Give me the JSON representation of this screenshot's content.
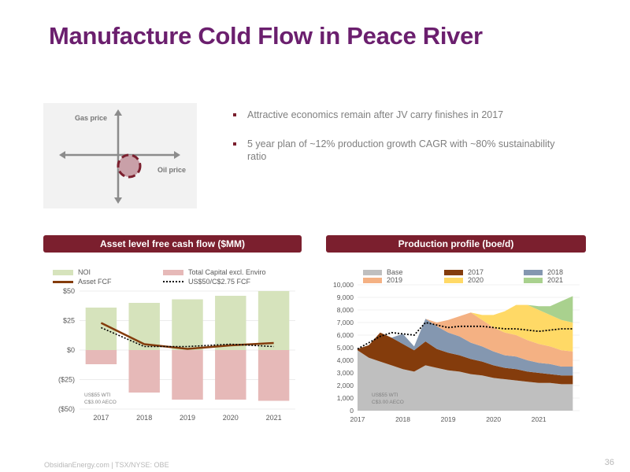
{
  "title": "Manufacture Cold Flow in Peace River",
  "quadrant": {
    "y_label": "Gas price",
    "x_label": "Oil price"
  },
  "bullets": [
    "Attractive economics remain after JV carry finishes in 2017",
    "5 year plan of ~12% production growth CAGR with ~80% sustainability ratio"
  ],
  "left_panel": {
    "header": "Asset level free cash flow ($MM)",
    "note_line1": "US$55 WTI",
    "note_line2": "C$3.00 AECO"
  },
  "right_panel": {
    "header": "Production profile (boe/d)",
    "note_line1": "US$55 WTI",
    "note_line2": "C$3.00 AECO"
  },
  "footer": "ObsidianEnergy.com | TSX/NYSE: OBE",
  "page_number": "36",
  "colors": {
    "title": "#6b1f6e",
    "header_bg": "#7b1f2e",
    "noi": "#d6e3bc",
    "capital": "#e6b9b8",
    "asset_fcf": "#843c0c",
    "base": "#bfbfbf",
    "y2017": "#843c0c",
    "y2018": "#8497b0",
    "y2019": "#f4b183",
    "y2020": "#ffd966",
    "y2021": "#a9d18e"
  },
  "chart_data": [
    {
      "type": "bar",
      "title": "Asset level free cash flow ($MM)",
      "categories": [
        "2017",
        "2018",
        "2019",
        "2020",
        "2021"
      ],
      "ylim": [
        -50,
        50
      ],
      "yticks": [
        "$50",
        "$25",
        "$0",
        "($25)",
        "($50)"
      ],
      "ytick_values": [
        50,
        25,
        0,
        -25,
        -50
      ],
      "bar_series": [
        {
          "name": "NOI",
          "values": [
            36,
            40,
            43,
            46,
            50
          ]
        },
        {
          "name": "Total Capital excl. Enviro",
          "values": [
            -12,
            -36,
            -42,
            -42,
            -43
          ]
        }
      ],
      "line_series": [
        {
          "name": "Asset FCF",
          "values": [
            23,
            5,
            1,
            4,
            6
          ]
        },
        {
          "name": "US$50/C$2.75 FCF",
          "values": [
            19,
            3,
            3,
            5,
            3
          ]
        }
      ],
      "legend": "top"
    },
    {
      "type": "area",
      "title": "Production profile (boe/d)",
      "x": [
        2017,
        2017.25,
        2017.5,
        2017.75,
        2018,
        2018.25,
        2018.5,
        2018.75,
        2019,
        2019.25,
        2019.5,
        2019.75,
        2020,
        2020.25,
        2020.5,
        2020.75,
        2021,
        2021.25,
        2021.5,
        2021.75
      ],
      "xticks": [
        "2017",
        "2018",
        "2019",
        "2020",
        "2021"
      ],
      "ylim": [
        0,
        10000
      ],
      "yticks": [
        "0",
        "1,000",
        "2,000",
        "3,000",
        "4,000",
        "5,000",
        "6,000",
        "7,000",
        "8,000",
        "9,000",
        "10,000"
      ],
      "series": [
        {
          "name": "Base",
          "values": [
            4800,
            4200,
            3900,
            3600,
            3300,
            3100,
            3600,
            3400,
            3200,
            3100,
            2900,
            2800,
            2600,
            2500,
            2400,
            2300,
            2200,
            2200,
            2100,
            2100
          ]
        },
        {
          "name": "2017",
          "values": [
            100,
            1000,
            2300,
            2200,
            2000,
            1700,
            1900,
            1500,
            1400,
            1300,
            1200,
            1100,
            1000,
            900,
            900,
            800,
            800,
            700,
            700,
            700
          ]
        },
        {
          "name": "2018",
          "values": [
            0,
            0,
            0,
            0,
            800,
            300,
            1800,
            1800,
            1600,
            1500,
            1300,
            1200,
            1100,
            1000,
            1000,
            900,
            800,
            800,
            700,
            700
          ]
        },
        {
          "name": "2019",
          "values": [
            0,
            0,
            0,
            0,
            0,
            0,
            0,
            300,
            1000,
            1600,
            2400,
            2100,
            1900,
            1800,
            1700,
            1600,
            1500,
            1400,
            1300,
            1200
          ]
        },
        {
          "name": "2020",
          "values": [
            0,
            0,
            0,
            0,
            0,
            0,
            0,
            0,
            0,
            0,
            0,
            400,
            1000,
            1700,
            2400,
            2800,
            2700,
            2500,
            2400,
            2300
          ]
        },
        {
          "name": "2021",
          "values": [
            0,
            0,
            0,
            0,
            0,
            0,
            0,
            0,
            0,
            0,
            0,
            0,
            0,
            0,
            0,
            0,
            300,
            700,
            1500,
            2100
          ]
        }
      ],
      "line_series": {
        "name": "",
        "values": [
          4900,
          5400,
          5900,
          6200,
          6100,
          6000,
          7000,
          6800,
          6600,
          6700,
          6700,
          6700,
          6600,
          6500,
          6500,
          6400,
          6300,
          6400,
          6500,
          6500
        ]
      },
      "legend": "top"
    }
  ]
}
